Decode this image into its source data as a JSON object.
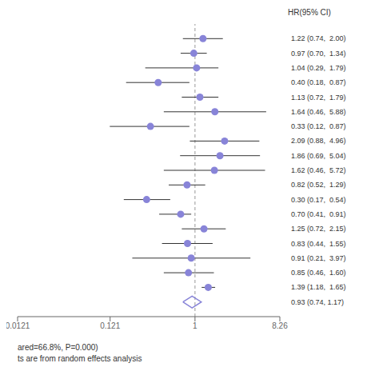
{
  "chart_data": {
    "type": "forest",
    "ylabel": "HR(95% CI)",
    "categories": [
      "1.22 (0.74,  2.00)",
      "0.97 (0.70,  1.34)",
      "1.04 (0.29,  1.79)",
      "0.40 (0.18,  0.87)",
      "1.13 (0.72,  1.79)",
      "1.64 (0.46,  5.88)",
      "0.33 (0.12,  0.87)",
      "2.09 (0.88,  4.96)",
      "1.86 (0.69,  5.04)",
      "1.62 (0.46,  5.72)",
      "0.82 (0.52,  1.29)",
      "0.30 (0.17,  0.54)",
      "0.70 (0.41,  0.91)",
      "1.25 (0.72,  2.15)",
      "0.83 (0.44,  1.55)",
      "0.91 (0.21,  3.97)",
      "0.85 (0.46,  1.60)",
      "1.39 (1.18,  1.65)"
    ],
    "values": [
      1.22,
      0.97,
      1.04,
      0.4,
      1.13,
      1.64,
      0.33,
      2.09,
      1.86,
      1.62,
      0.82,
      0.3,
      0.7,
      1.25,
      0.83,
      0.91,
      0.85,
      1.39
    ],
    "ci_low": [
      0.74,
      0.7,
      0.29,
      0.18,
      0.72,
      0.46,
      0.12,
      0.88,
      0.69,
      0.46,
      0.52,
      0.17,
      0.41,
      0.72,
      0.44,
      0.21,
      0.46,
      1.18
    ],
    "ci_high": [
      2.0,
      1.34,
      1.79,
      0.87,
      1.79,
      5.88,
      0.87,
      4.96,
      5.04,
      5.72,
      1.29,
      0.54,
      0.91,
      2.15,
      1.55,
      3.97,
      1.6,
      1.65
    ],
    "pooled": {
      "label": "0.93 (0.74, 1.17)",
      "value": 0.93,
      "ci_low": 0.74,
      "ci_high": 1.17
    },
    "ref_line": 1,
    "log": "x",
    "xlim": [
      0.0121,
      8.26
    ],
    "xticks": [
      0.0121,
      0.121,
      1,
      8.26
    ],
    "annotations": [
      "ared=66.8%, P=0.000)",
      "ts are from random effects analysis"
    ]
  }
}
